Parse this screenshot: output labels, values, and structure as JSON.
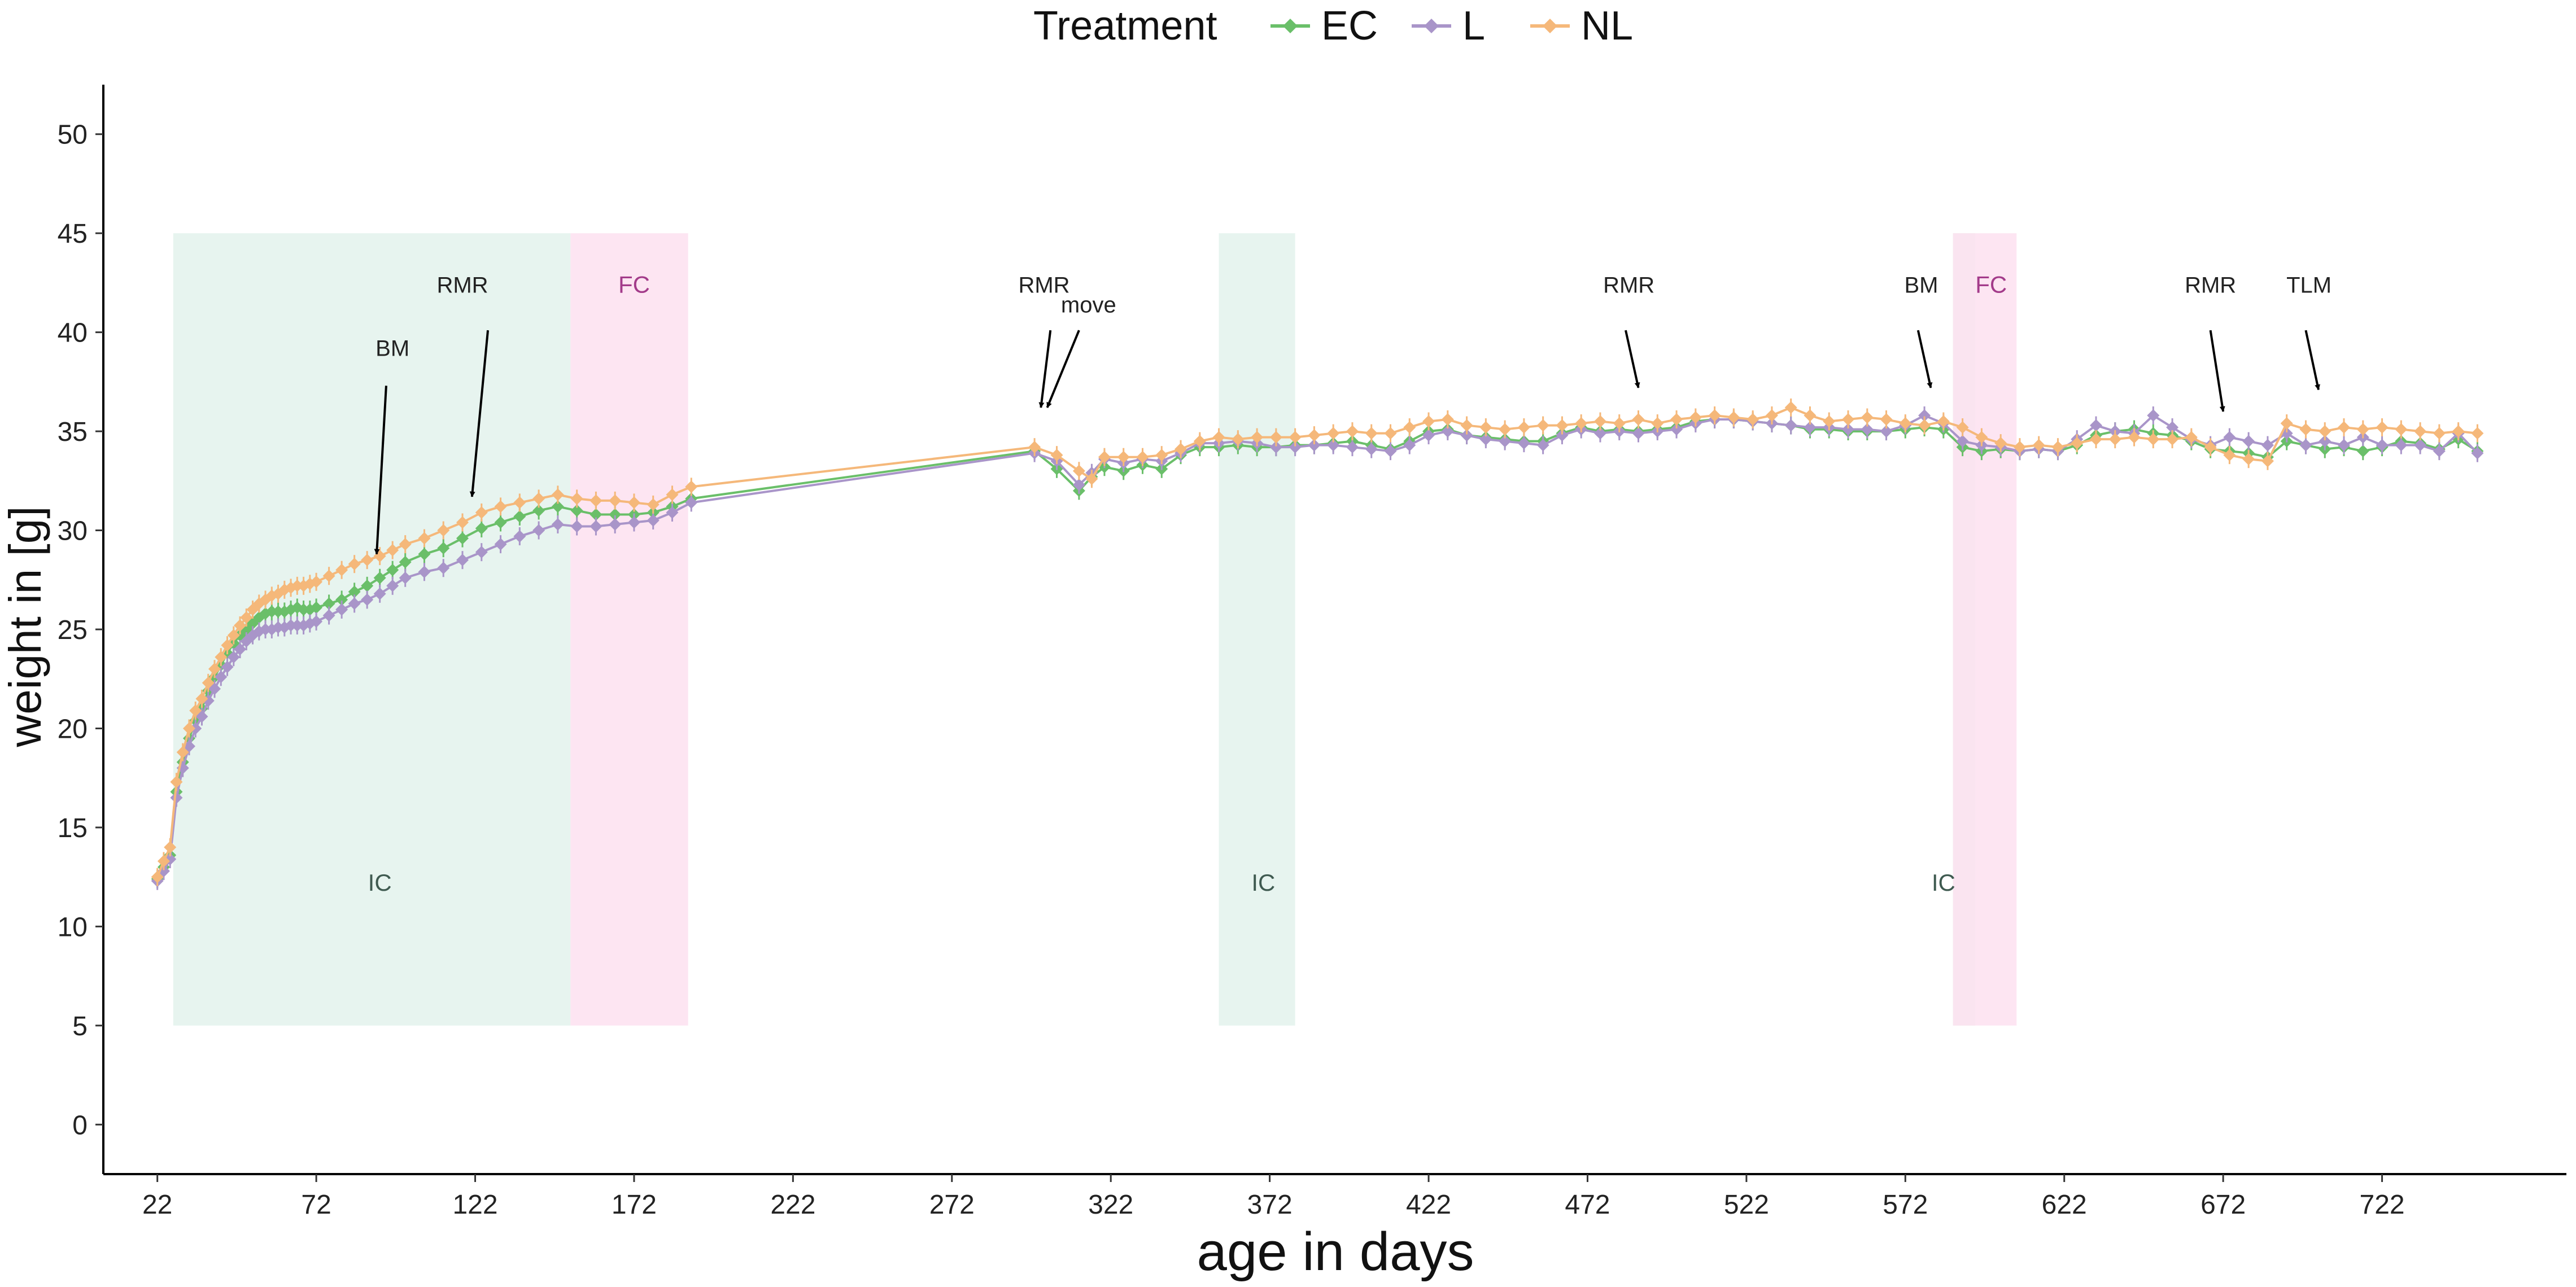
{
  "chart_data": {
    "type": "line",
    "title": "",
    "xlabel": "age in days",
    "ylabel": "weight in [g]",
    "xlim": [
      5,
      780
    ],
    "ylim": [
      -2.5,
      52.5
    ],
    "x_ticks": [
      22,
      72,
      122,
      172,
      222,
      272,
      322,
      372,
      422,
      472,
      522,
      572,
      622,
      672,
      722
    ],
    "y_ticks": [
      0,
      5,
      10,
      15,
      20,
      25,
      30,
      35,
      40,
      45,
      50
    ],
    "grid": false,
    "legend": {
      "title": "Treatment",
      "position": "top",
      "entries": [
        "EC",
        "L",
        "NL"
      ]
    },
    "colors": {
      "EC": "#6abf69",
      "L": "#a995c9",
      "NL": "#f5b87a"
    },
    "region_colors": {
      "IC": "#e6f3ee",
      "FC": "#fde0f0",
      "overlap": "#ece6ee"
    },
    "regions": [
      {
        "label": "IC",
        "x_start": 27,
        "x_end": 152,
        "y_start": 5,
        "y_end": 45,
        "type": "IC"
      },
      {
        "label": "FC",
        "x_start": 152,
        "x_end": 189,
        "y_start": 5,
        "y_end": 45,
        "type": "FC"
      },
      {
        "label": "IC",
        "x_start": 356,
        "x_end": 380,
        "y_start": 5,
        "y_end": 45,
        "type": "IC"
      },
      {
        "label": "IC",
        "x_start": 587,
        "x_end": 594,
        "y_start": 5,
        "y_end": 45,
        "type": "IC"
      },
      {
        "label": "FC",
        "x_start": 587,
        "x_end": 607,
        "y_start": 5,
        "y_end": 45,
        "type": "FC"
      }
    ],
    "region_labels": [
      {
        "text": "IC",
        "x": 92,
        "y": 11.8,
        "type": "IC"
      },
      {
        "text": "FC",
        "x": 172,
        "y": 42,
        "type": "FC"
      },
      {
        "text": "IC",
        "x": 370,
        "y": 11.8,
        "type": "IC"
      },
      {
        "text": "IC",
        "x": 584,
        "y": 11.8,
        "type": "IC"
      },
      {
        "text": "FC",
        "x": 599,
        "y": 42,
        "type": "FC"
      }
    ],
    "annotations": [
      {
        "text": "BM",
        "text_x": 96,
        "text_y": 38.8,
        "arrow_from": [
          94,
          37.3
        ],
        "arrow_to": [
          91,
          28.8
        ]
      },
      {
        "text": "RMR",
        "text_x": 118,
        "text_y": 42,
        "arrow_from": [
          126,
          40.1
        ],
        "arrow_to": [
          121,
          31.7
        ]
      },
      {
        "text": "RMR",
        "text_x": 301,
        "text_y": 42,
        "arrow_from": [
          303,
          40.1
        ],
        "arrow_to": [
          300,
          36.2
        ]
      },
      {
        "text": "move",
        "text_x": 315,
        "text_y": 41,
        "arrow_from": [
          312,
          40.1
        ],
        "arrow_to": [
          302,
          36.2
        ]
      },
      {
        "text": "RMR",
        "text_x": 485,
        "text_y": 42,
        "arrow_from": [
          484,
          40.1
        ],
        "arrow_to": [
          488,
          37.2
        ]
      },
      {
        "text": "BM",
        "text_x": 577,
        "text_y": 42,
        "arrow_from": [
          576,
          40.1
        ],
        "arrow_to": [
          580,
          37.2
        ]
      },
      {
        "text": "RMR",
        "text_x": 668,
        "text_y": 42,
        "arrow_from": [
          668,
          40.1
        ],
        "arrow_to": [
          672,
          36.0
        ]
      },
      {
        "text": "TLM",
        "text_x": 699,
        "text_y": 42,
        "arrow_from": [
          698,
          40.1
        ],
        "arrow_to": [
          702,
          37.1
        ]
      }
    ],
    "series": [
      {
        "name": "EC",
        "x": [
          22,
          24,
          26,
          28,
          30,
          32,
          34,
          36,
          38,
          40,
          42,
          44,
          46,
          48,
          50,
          52,
          54,
          56,
          58,
          60,
          62,
          64,
          66,
          68,
          70,
          72,
          76,
          80,
          84,
          88,
          92,
          96,
          100,
          106,
          112,
          118,
          124,
          130,
          136,
          142,
          148,
          154,
          160,
          166,
          172,
          178,
          184,
          190,
          298,
          305,
          312,
          316,
          320,
          326,
          332,
          338,
          344,
          350,
          356,
          362,
          368,
          374,
          380,
          386,
          392,
          398,
          404,
          410,
          416,
          422,
          428,
          434,
          440,
          446,
          452,
          458,
          464,
          470,
          476,
          482,
          488,
          494,
          500,
          506,
          512,
          518,
          524,
          530,
          536,
          542,
          548,
          554,
          560,
          566,
          572,
          578,
          584,
          590,
          596,
          602,
          608,
          614,
          620,
          626,
          632,
          638,
          644,
          650,
          656,
          662,
          668,
          674,
          680,
          686,
          692,
          698,
          704,
          710,
          716,
          722,
          728,
          734,
          740,
          746,
          752
        ],
        "values": [
          12.4,
          13.0,
          13.6,
          16.8,
          18.3,
          19.5,
          20.4,
          21.0,
          21.9,
          22.6,
          23.2,
          23.8,
          24.3,
          24.7,
          25.0,
          25.3,
          25.6,
          25.8,
          25.9,
          25.9,
          25.9,
          26.0,
          26.1,
          26.0,
          26.0,
          26.1,
          26.3,
          26.5,
          26.9,
          27.2,
          27.6,
          28.0,
          28.4,
          28.8,
          29.1,
          29.6,
          30.1,
          30.4,
          30.7,
          31.0,
          31.2,
          31.0,
          30.8,
          30.8,
          30.8,
          30.9,
          31.2,
          31.6,
          34.0,
          33.1,
          32.0,
          32.7,
          33.2,
          33.0,
          33.3,
          33.1,
          33.8,
          34.2,
          34.2,
          34.3,
          34.2,
          34.2,
          34.3,
          34.3,
          34.4,
          34.5,
          34.3,
          34.1,
          34.5,
          35.0,
          35.1,
          34.8,
          34.7,
          34.6,
          34.5,
          34.5,
          34.9,
          35.2,
          35.0,
          35.1,
          35.0,
          35.1,
          35.2,
          35.5,
          35.6,
          35.6,
          35.5,
          35.4,
          35.3,
          35.1,
          35.1,
          35.0,
          35.0,
          35.0,
          35.1,
          35.2,
          35.1,
          34.2,
          34.0,
          34.1,
          34.0,
          34.1,
          34.0,
          34.3,
          34.8,
          35.0,
          35.1,
          34.9,
          34.8,
          34.5,
          34.1,
          34.0,
          33.9,
          33.7,
          34.5,
          34.3,
          34.1,
          34.2,
          34.0,
          34.2,
          34.5,
          34.4,
          34.1,
          34.6,
          34.0
        ]
      },
      {
        "name": "L",
        "x": [
          22,
          24,
          26,
          28,
          30,
          32,
          34,
          36,
          38,
          40,
          42,
          44,
          46,
          48,
          50,
          52,
          54,
          56,
          58,
          60,
          62,
          64,
          66,
          68,
          70,
          72,
          76,
          80,
          84,
          88,
          92,
          96,
          100,
          106,
          112,
          118,
          124,
          130,
          136,
          142,
          148,
          154,
          160,
          166,
          172,
          178,
          184,
          190,
          298,
          305,
          312,
          316,
          320,
          326,
          332,
          338,
          344,
          350,
          356,
          362,
          368,
          374,
          380,
          386,
          392,
          398,
          404,
          410,
          416,
          422,
          428,
          434,
          440,
          446,
          452,
          458,
          464,
          470,
          476,
          482,
          488,
          494,
          500,
          506,
          512,
          518,
          524,
          530,
          536,
          542,
          548,
          554,
          560,
          566,
          572,
          578,
          584,
          590,
          596,
          602,
          608,
          614,
          620,
          626,
          632,
          638,
          644,
          650,
          656,
          662,
          668,
          674,
          680,
          686,
          692,
          698,
          704,
          710,
          716,
          722,
          728,
          734,
          740,
          746,
          752
        ],
        "values": [
          12.3,
          12.8,
          13.4,
          16.5,
          18.0,
          19.1,
          20.0,
          20.6,
          21.4,
          22.0,
          22.6,
          23.1,
          23.6,
          24.0,
          24.4,
          24.7,
          24.9,
          25.0,
          25.0,
          25.1,
          25.1,
          25.2,
          25.2,
          25.2,
          25.3,
          25.4,
          25.7,
          26.0,
          26.3,
          26.5,
          26.8,
          27.2,
          27.6,
          27.9,
          28.1,
          28.5,
          28.9,
          29.3,
          29.7,
          30.0,
          30.3,
          30.2,
          30.2,
          30.3,
          30.4,
          30.5,
          30.9,
          31.4,
          33.9,
          33.5,
          32.3,
          32.9,
          33.6,
          33.4,
          33.6,
          33.5,
          33.9,
          34.4,
          34.4,
          34.5,
          34.4,
          34.2,
          34.2,
          34.3,
          34.3,
          34.2,
          34.1,
          34.0,
          34.3,
          34.8,
          35.0,
          34.8,
          34.6,
          34.5,
          34.4,
          34.3,
          34.8,
          35.1,
          34.9,
          35.0,
          34.9,
          35.0,
          35.1,
          35.4,
          35.6,
          35.6,
          35.5,
          35.4,
          35.3,
          35.2,
          35.2,
          35.1,
          35.1,
          35.0,
          35.3,
          35.8,
          35.4,
          34.5,
          34.3,
          34.2,
          34.0,
          34.1,
          34.0,
          34.6,
          35.3,
          35.0,
          34.9,
          35.8,
          35.2,
          34.6,
          34.3,
          34.7,
          34.5,
          34.3,
          34.9,
          34.3,
          34.5,
          34.3,
          34.7,
          34.3,
          34.3,
          34.3,
          34.0,
          34.9,
          33.9
        ]
      },
      {
        "name": "NL",
        "x": [
          22,
          24,
          26,
          28,
          30,
          32,
          34,
          36,
          38,
          40,
          42,
          44,
          46,
          48,
          50,
          52,
          54,
          56,
          58,
          60,
          62,
          64,
          66,
          68,
          70,
          72,
          76,
          80,
          84,
          88,
          92,
          96,
          100,
          106,
          112,
          118,
          124,
          130,
          136,
          142,
          148,
          154,
          160,
          166,
          172,
          178,
          184,
          190,
          298,
          305,
          312,
          316,
          320,
          326,
          332,
          338,
          344,
          350,
          356,
          362,
          368,
          374,
          380,
          386,
          392,
          398,
          404,
          410,
          416,
          422,
          428,
          434,
          440,
          446,
          452,
          458,
          464,
          470,
          476,
          482,
          488,
          494,
          500,
          506,
          512,
          518,
          524,
          530,
          536,
          542,
          548,
          554,
          560,
          566,
          572,
          578,
          584,
          590,
          596,
          602,
          608,
          614,
          620,
          626,
          632,
          638,
          644,
          650,
          656,
          662,
          668,
          674,
          680,
          686,
          692,
          698,
          704,
          710,
          716,
          722,
          728,
          734,
          740,
          746,
          752
        ],
        "values": [
          12.5,
          13.3,
          14.0,
          17.3,
          18.8,
          20.0,
          20.9,
          21.5,
          22.3,
          23.0,
          23.6,
          24.2,
          24.7,
          25.2,
          25.6,
          26.0,
          26.3,
          26.5,
          26.7,
          26.8,
          27.0,
          27.1,
          27.2,
          27.2,
          27.3,
          27.4,
          27.7,
          28.0,
          28.3,
          28.5,
          28.7,
          29.0,
          29.3,
          29.6,
          30.0,
          30.4,
          30.9,
          31.2,
          31.4,
          31.6,
          31.8,
          31.6,
          31.5,
          31.5,
          31.4,
          31.3,
          31.8,
          32.2,
          34.2,
          33.8,
          33.0,
          32.6,
          33.7,
          33.7,
          33.7,
          33.8,
          34.1,
          34.5,
          34.7,
          34.6,
          34.7,
          34.7,
          34.7,
          34.8,
          34.9,
          35.0,
          34.9,
          34.9,
          35.2,
          35.5,
          35.6,
          35.3,
          35.2,
          35.1,
          35.2,
          35.3,
          35.3,
          35.4,
          35.5,
          35.4,
          35.6,
          35.4,
          35.6,
          35.7,
          35.8,
          35.7,
          35.6,
          35.8,
          36.2,
          35.8,
          35.5,
          35.6,
          35.7,
          35.6,
          35.4,
          35.3,
          35.5,
          35.2,
          34.7,
          34.4,
          34.2,
          34.3,
          34.2,
          34.4,
          34.6,
          34.6,
          34.7,
          34.6,
          34.6,
          34.7,
          34.2,
          33.8,
          33.6,
          33.5,
          35.4,
          35.1,
          35.0,
          35.2,
          35.1,
          35.2,
          35.1,
          35.0,
          34.9,
          35.0,
          34.9
        ]
      }
    ]
  }
}
